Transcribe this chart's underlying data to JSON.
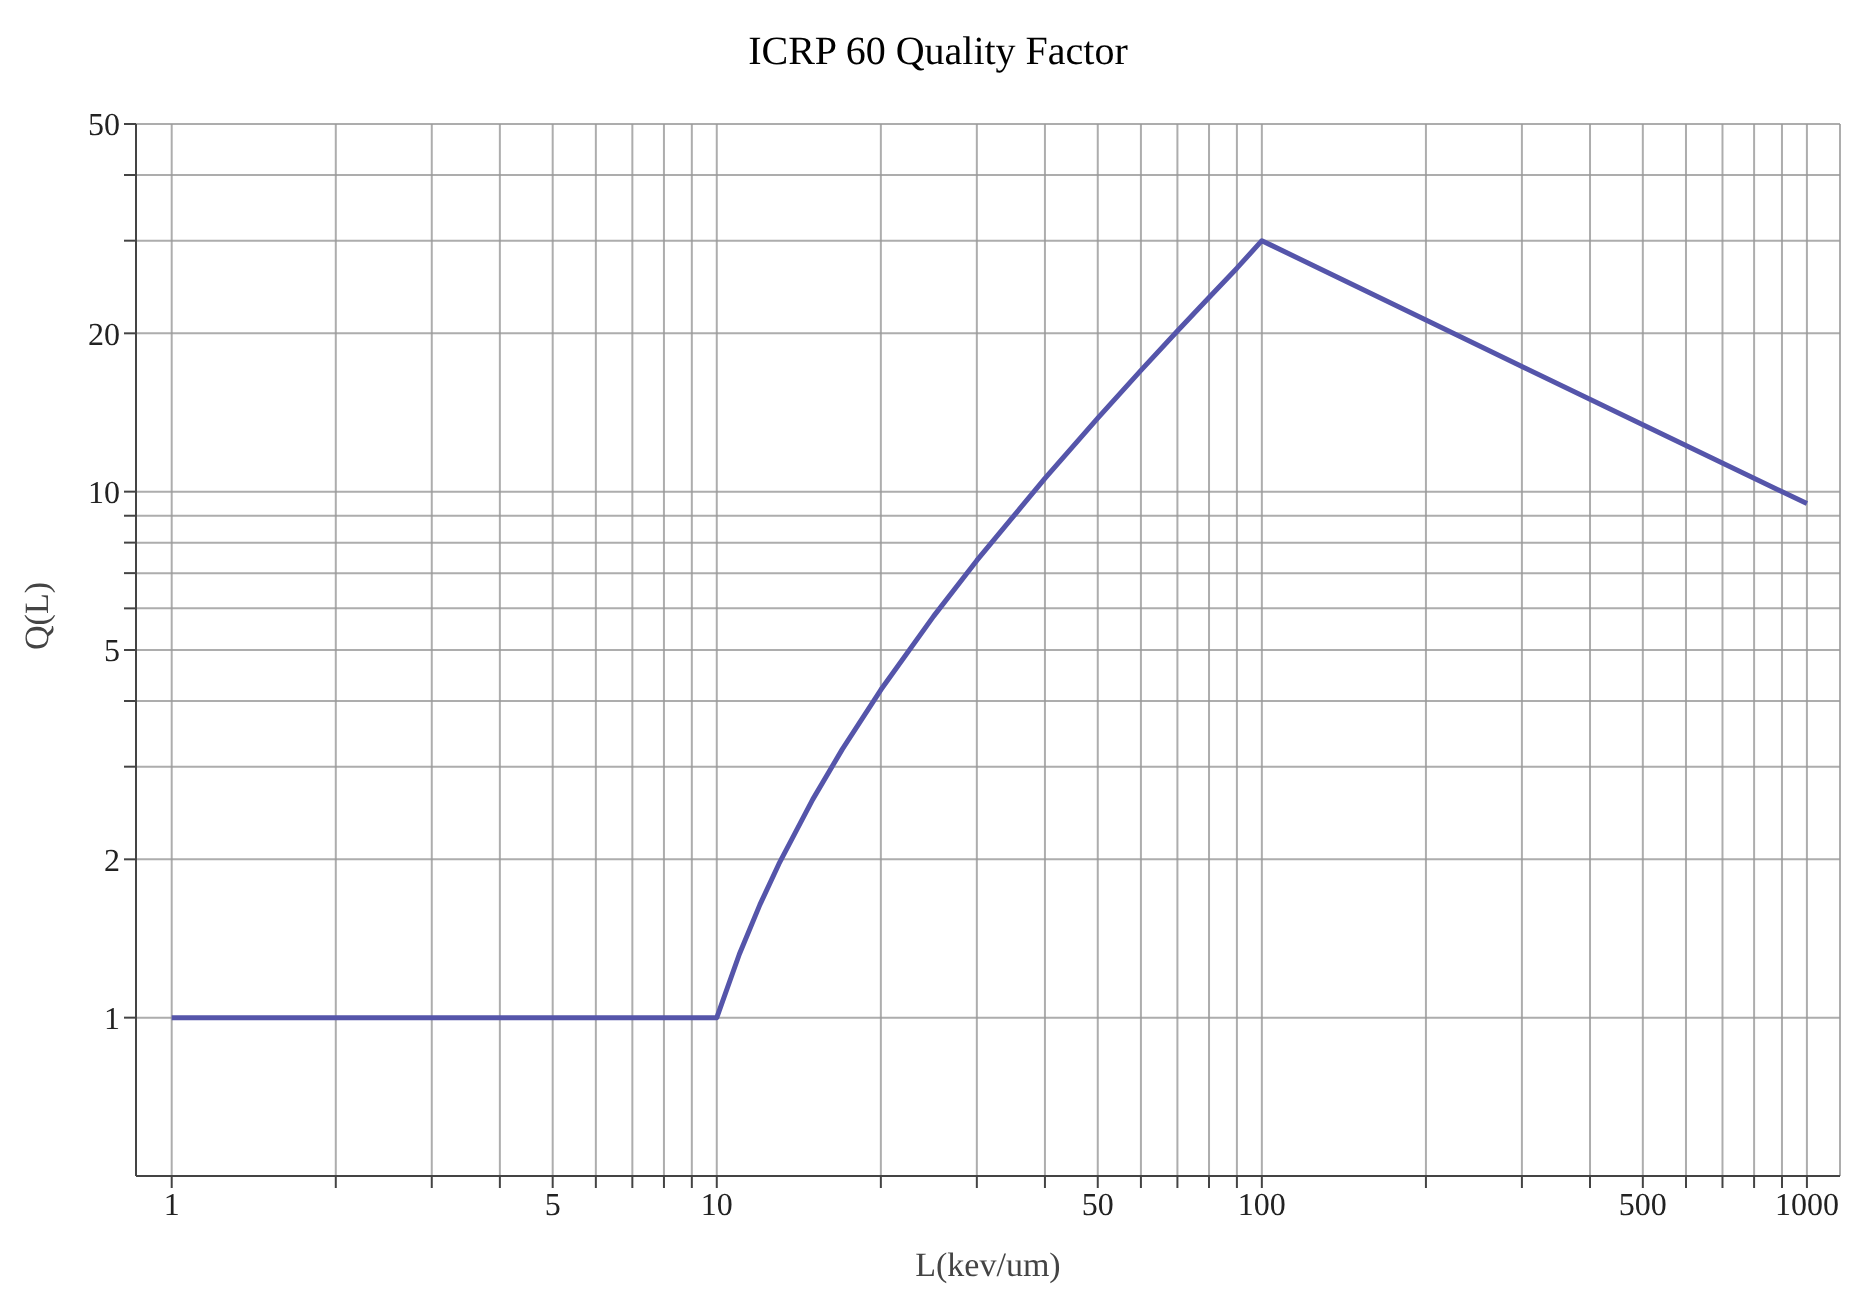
{
  "chart_data": {
    "type": "line",
    "title": "ICRP 60 Quality Factor",
    "xlabel": "L(kev/um)",
    "ylabel": "Q(L)",
    "log": "xy",
    "grid": true,
    "x": [
      1,
      10,
      11,
      12,
      13,
      15,
      17,
      20,
      25,
      30,
      40,
      50,
      60,
      70,
      80,
      90,
      100,
      200,
      300,
      500,
      1000
    ],
    "series": [
      {
        "color": "#5555aa",
        "values": [
          1,
          1,
          1.32,
          1.64,
          1.96,
          2.6,
          3.24,
          4.2,
          5.8,
          7.4,
          10.6,
          13.8,
          17.0,
          20.2,
          23.4,
          26.6,
          30,
          21.2,
          17.3,
          13.4,
          9.49
        ]
      }
    ],
    "xlim": [
      0.86,
      1150
    ],
    "ylim": [
      0.5,
      50
    ],
    "xticks": [
      1,
      {
        "value": 2,
        "label": null
      },
      {
        "value": 3,
        "label": null
      },
      {
        "value": 4,
        "label": null
      },
      5,
      {
        "value": 6,
        "label": null
      },
      {
        "value": 7,
        "label": null
      },
      {
        "value": 8,
        "label": null
      },
      {
        "value": 9,
        "label": null
      },
      10,
      {
        "value": 20,
        "label": null
      },
      {
        "value": 30,
        "label": null
      },
      {
        "value": 40,
        "label": null
      },
      50,
      {
        "value": 60,
        "label": null
      },
      {
        "value": 70,
        "label": null
      },
      {
        "value": 80,
        "label": null
      },
      {
        "value": 90,
        "label": null
      },
      100,
      {
        "value": 200,
        "label": null
      },
      {
        "value": 300,
        "label": null
      },
      {
        "value": 400,
        "label": null
      },
      500,
      {
        "value": 600,
        "label": null
      },
      {
        "value": 700,
        "label": null
      },
      {
        "value": 800,
        "label": null
      },
      {
        "value": 900,
        "label": null
      },
      1000
    ],
    "yticks": [
      1,
      2,
      {
        "value": 3,
        "label": null
      },
      {
        "value": 4,
        "label": null
      },
      5,
      {
        "value": 6,
        "label": null
      },
      {
        "value": 7,
        "label": null
      },
      {
        "value": 8,
        "label": null
      },
      {
        "value": 9,
        "label": null
      },
      10,
      20,
      {
        "value": 30,
        "label": null
      },
      {
        "value": 40,
        "label": null
      },
      50
    ]
  }
}
